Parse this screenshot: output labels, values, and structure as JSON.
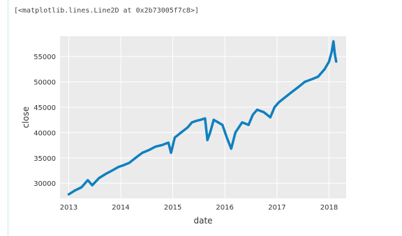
{
  "cell_output": {
    "repr_text": "[<matplotlib.lines.Line2D at 0x2b73005f7c8>]"
  },
  "chart_data": {
    "type": "line",
    "xlabel": "date",
    "ylabel": "close",
    "x_ticks": [
      "2013",
      "2014",
      "2015",
      "2016",
      "2017",
      "2018"
    ],
    "y_ticks": [
      "30000",
      "35000",
      "40000",
      "45000",
      "50000",
      "55000"
    ],
    "xlim": [
      "2012-11-01",
      "2018-05-01"
    ],
    "ylim": [
      27000,
      59000
    ],
    "grid": true,
    "background": "#ebebeb",
    "line_color": "#0f80c0",
    "series": [
      {
        "points": [
          [
            "2013-01-01",
            27800
          ],
          [
            "2013-02-15",
            28600
          ],
          [
            "2013-04-01",
            29200
          ],
          [
            "2013-05-15",
            30600
          ],
          [
            "2013-06-15",
            29600
          ],
          [
            "2013-08-01",
            31000
          ],
          [
            "2013-09-15",
            31800
          ],
          [
            "2013-11-01",
            32500
          ],
          [
            "2013-12-15",
            33200
          ],
          [
            "2014-01-15",
            33500
          ],
          [
            "2014-03-01",
            34000
          ],
          [
            "2014-04-15",
            35000
          ],
          [
            "2014-06-01",
            36000
          ],
          [
            "2014-07-15",
            36500
          ],
          [
            "2014-09-01",
            37200
          ],
          [
            "2014-10-15",
            37500
          ],
          [
            "2014-12-01",
            38000
          ],
          [
            "2014-12-20",
            36000
          ],
          [
            "2015-01-15",
            39000
          ],
          [
            "2015-03-01",
            40000
          ],
          [
            "2015-04-15",
            41000
          ],
          [
            "2015-05-15",
            42000
          ],
          [
            "2015-06-15",
            42300
          ],
          [
            "2015-07-15",
            42500
          ],
          [
            "2015-08-15",
            42800
          ],
          [
            "2015-09-01",
            38500
          ],
          [
            "2015-09-20",
            40000
          ],
          [
            "2015-10-15",
            42500
          ],
          [
            "2015-11-15",
            42000
          ],
          [
            "2015-12-15",
            41500
          ],
          [
            "2016-01-15",
            39000
          ],
          [
            "2016-02-15",
            36800
          ],
          [
            "2016-03-15",
            40000
          ],
          [
            "2016-05-01",
            42000
          ],
          [
            "2016-06-15",
            41500
          ],
          [
            "2016-07-15",
            43500
          ],
          [
            "2016-08-15",
            44500
          ],
          [
            "2016-10-01",
            44000
          ],
          [
            "2016-11-15",
            43000
          ],
          [
            "2016-12-15",
            45000
          ],
          [
            "2017-01-15",
            46000
          ],
          [
            "2017-03-01",
            47000
          ],
          [
            "2017-04-15",
            48000
          ],
          [
            "2017-06-01",
            49000
          ],
          [
            "2017-07-15",
            50000
          ],
          [
            "2017-09-01",
            50500
          ],
          [
            "2017-10-15",
            51000
          ],
          [
            "2017-12-01",
            52500
          ],
          [
            "2018-01-01",
            54000
          ],
          [
            "2018-01-20",
            56000
          ],
          [
            "2018-02-01",
            58000
          ],
          [
            "2018-02-10",
            55500
          ],
          [
            "2018-02-20",
            54000
          ]
        ]
      }
    ]
  }
}
